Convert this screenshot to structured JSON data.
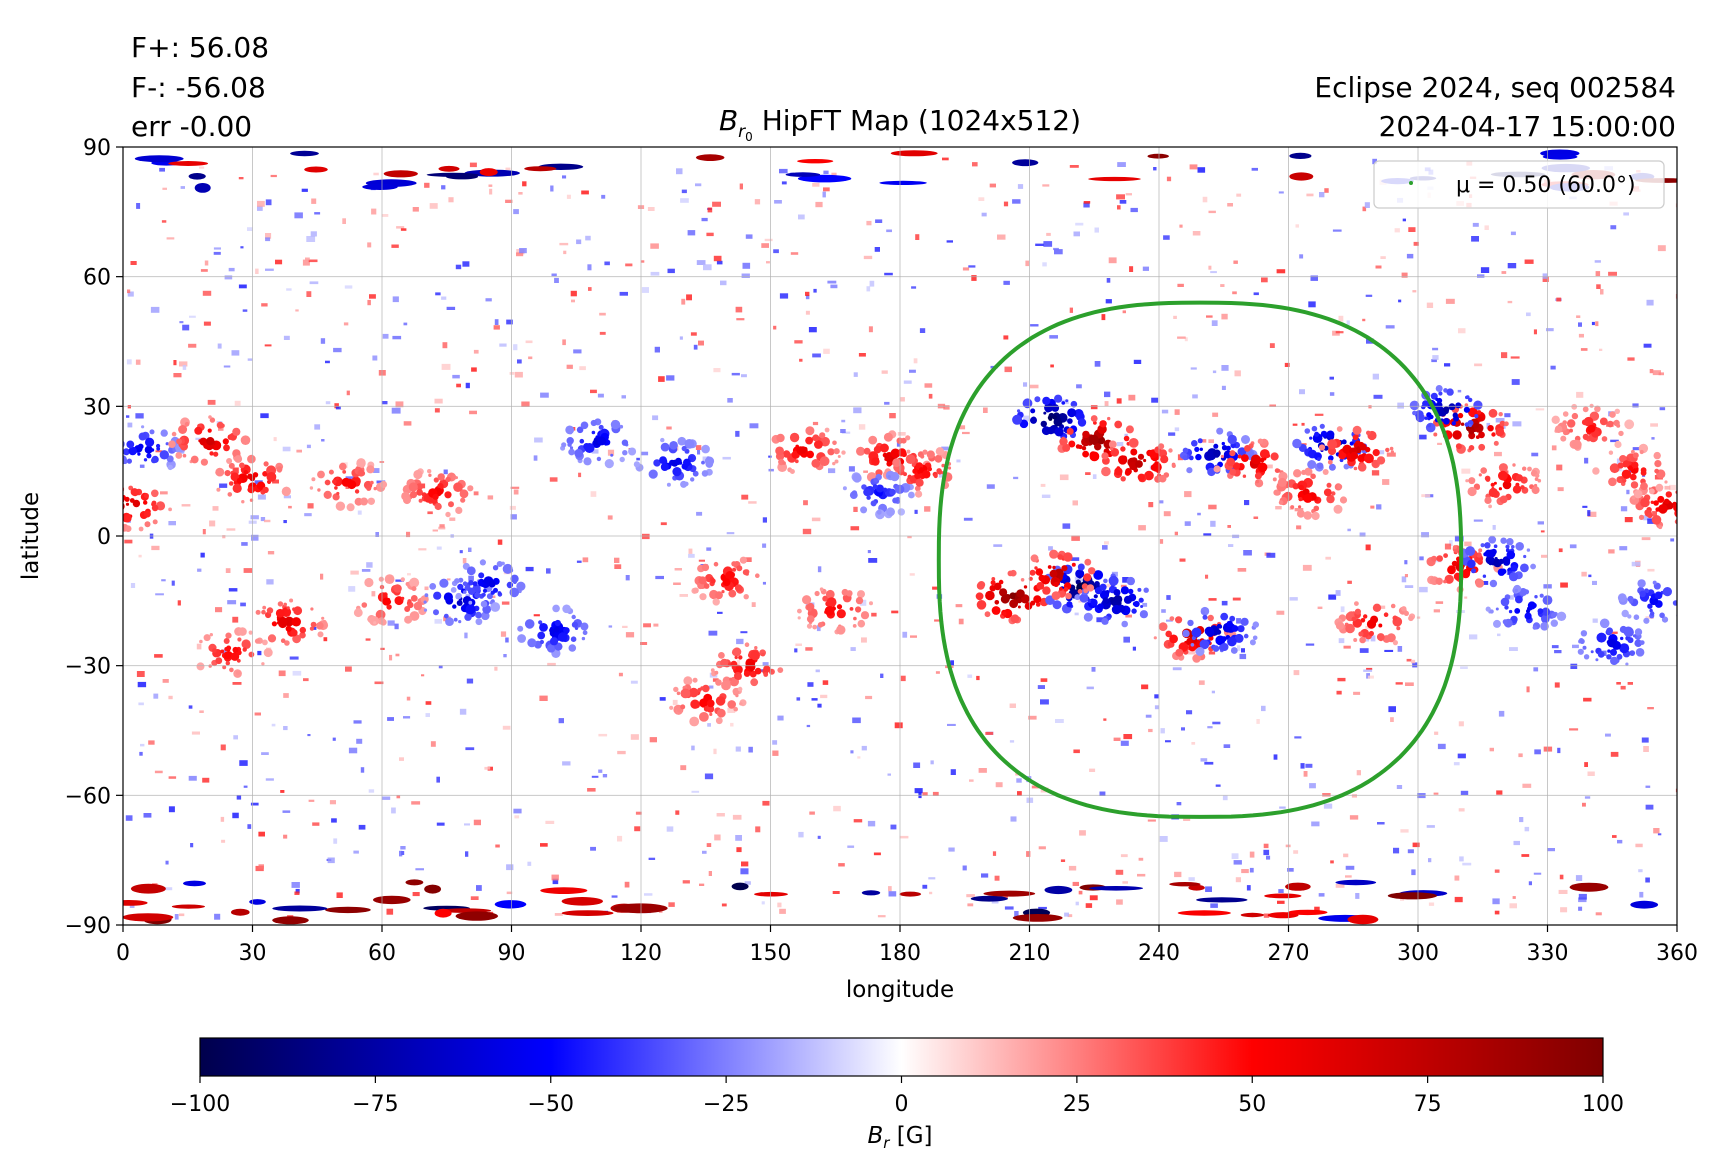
{
  "header": {
    "flux_pos": "F+: 56.08",
    "flux_neg": "F-: -56.08",
    "flux_err": "err -0.00",
    "title_prefix": "B",
    "title_sub": "r",
    "title_subsub": "0",
    "title_rest": " HipFT Map (1024x512)",
    "info_line1": "Eclipse 2024, seq 002584",
    "info_line2": "2024-04-17 15:00:00"
  },
  "chart_data": {
    "type": "heatmap",
    "xlabel": "longitude",
    "ylabel": "latitude",
    "xlim": [
      0,
      360
    ],
    "ylim": [
      -90,
      90
    ],
    "xticks": [
      "0",
      "30",
      "60",
      "90",
      "120",
      "150",
      "180",
      "210",
      "240",
      "270",
      "300",
      "330",
      "360"
    ],
    "yticks": [
      "90",
      "60",
      "30",
      "0",
      "−30",
      "−60",
      "−90"
    ],
    "xtick_values": [
      0,
      30,
      60,
      90,
      120,
      150,
      180,
      210,
      240,
      270,
      300,
      330,
      360
    ],
    "ytick_values": [
      90,
      60,
      30,
      0,
      -30,
      -60,
      -90
    ],
    "grid": true,
    "colormap": "seismic",
    "colorbar": {
      "label_symbol": "B",
      "label_sub": "r",
      "label_units": " [G]",
      "range": [
        -100,
        100
      ],
      "ticks": [
        "−100",
        "−75",
        "−50",
        "−25",
        "0",
        "25",
        "50",
        "75",
        "100"
      ],
      "tick_values": [
        -100,
        -75,
        -50,
        -25,
        0,
        25,
        50,
        75,
        100
      ],
      "colors": [
        "#00004c",
        "#0000ff",
        "#ffffff",
        "#ff0000",
        "#7f0000"
      ]
    },
    "contour": {
      "legend": "μ = 0.50 (60.0°)",
      "legend_position": "top-right",
      "color": "#2ca02c",
      "center_lon": 249,
      "center_lat": -5,
      "lon_extent": [
        189,
        310
      ],
      "lat_extent": [
        -65,
        54
      ]
    },
    "active_regions": [
      {
        "lon": 215,
        "lat": 27,
        "polarity": -1,
        "strength": 100
      },
      {
        "lon": 226,
        "lat": 22,
        "polarity": 1,
        "strength": 95
      },
      {
        "lon": 235,
        "lat": 17,
        "polarity": 1,
        "strength": 80
      },
      {
        "lon": 253,
        "lat": 19,
        "polarity": -1,
        "strength": 75
      },
      {
        "lon": 262,
        "lat": 17,
        "polarity": 1,
        "strength": 65
      },
      {
        "lon": 275,
        "lat": 10,
        "polarity": 1,
        "strength": 60
      },
      {
        "lon": 280,
        "lat": 21,
        "polarity": -1,
        "strength": 80
      },
      {
        "lon": 286,
        "lat": 20,
        "polarity": 1,
        "strength": 70
      },
      {
        "lon": 206,
        "lat": -14,
        "polarity": 1,
        "strength": 100
      },
      {
        "lon": 222,
        "lat": -12,
        "polarity": -1,
        "strength": 100
      },
      {
        "lon": 230,
        "lat": -15,
        "polarity": -1,
        "strength": 80
      },
      {
        "lon": 217,
        "lat": -9,
        "polarity": 1,
        "strength": 80
      },
      {
        "lon": 248,
        "lat": -23,
        "polarity": 1,
        "strength": 75
      },
      {
        "lon": 254,
        "lat": -22,
        "polarity": -1,
        "strength": 70
      },
      {
        "lon": 312,
        "lat": 25,
        "polarity": 1,
        "strength": 90
      },
      {
        "lon": 307,
        "lat": 29,
        "polarity": -1,
        "strength": 80
      },
      {
        "lon": 320,
        "lat": 12,
        "polarity": 1,
        "strength": 60
      },
      {
        "lon": 310,
        "lat": -7,
        "polarity": 1,
        "strength": 65
      },
      {
        "lon": 318,
        "lat": -6,
        "polarity": -1,
        "strength": 75
      },
      {
        "lon": 325,
        "lat": -17,
        "polarity": -1,
        "strength": 60
      },
      {
        "lon": 290,
        "lat": -20,
        "polarity": 1,
        "strength": 60
      },
      {
        "lon": 2,
        "lat": 7,
        "polarity": 1,
        "strength": 70
      },
      {
        "lon": 358,
        "lat": 7,
        "polarity": 1,
        "strength": 65
      },
      {
        "lon": 5,
        "lat": 20,
        "polarity": -1,
        "strength": 60
      },
      {
        "lon": 20,
        "lat": 22,
        "polarity": 1,
        "strength": 70
      },
      {
        "lon": 30,
        "lat": 13,
        "polarity": 1,
        "strength": 65
      },
      {
        "lon": 52,
        "lat": 12,
        "polarity": 1,
        "strength": 55
      },
      {
        "lon": 73,
        "lat": 10,
        "polarity": 1,
        "strength": 55
      },
      {
        "lon": 110,
        "lat": 22,
        "polarity": -1,
        "strength": 60
      },
      {
        "lon": 128,
        "lat": 17,
        "polarity": -1,
        "strength": 60
      },
      {
        "lon": 158,
        "lat": 20,
        "polarity": 1,
        "strength": 60
      },
      {
        "lon": 178,
        "lat": 18,
        "polarity": 1,
        "strength": 65
      },
      {
        "lon": 185,
        "lat": 15,
        "polarity": 1,
        "strength": 55
      },
      {
        "lon": 175,
        "lat": 10,
        "polarity": -1,
        "strength": 50
      },
      {
        "lon": 38,
        "lat": -20,
        "polarity": 1,
        "strength": 65
      },
      {
        "lon": 25,
        "lat": -27,
        "polarity": 1,
        "strength": 55
      },
      {
        "lon": 62,
        "lat": -15,
        "polarity": 1,
        "strength": 55
      },
      {
        "lon": 78,
        "lat": -15,
        "polarity": -1,
        "strength": 70
      },
      {
        "lon": 85,
        "lat": -11,
        "polarity": -1,
        "strength": 60
      },
      {
        "lon": 100,
        "lat": -22,
        "polarity": -1,
        "strength": 60
      },
      {
        "lon": 140,
        "lat": -10,
        "polarity": 1,
        "strength": 55
      },
      {
        "lon": 145,
        "lat": -30,
        "polarity": 1,
        "strength": 60
      },
      {
        "lon": 135,
        "lat": -38,
        "polarity": 1,
        "strength": 55
      },
      {
        "lon": 165,
        "lat": -17,
        "polarity": 1,
        "strength": 55
      },
      {
        "lon": 345,
        "lat": -25,
        "polarity": -1,
        "strength": 60
      },
      {
        "lon": 355,
        "lat": -15,
        "polarity": -1,
        "strength": 55
      },
      {
        "lon": 350,
        "lat": 15,
        "polarity": 1,
        "strength": 55
      },
      {
        "lon": 340,
        "lat": 25,
        "polarity": 1,
        "strength": 50
      }
    ]
  }
}
